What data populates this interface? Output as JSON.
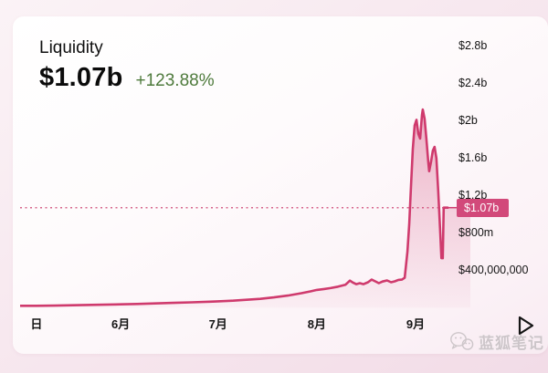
{
  "header": {
    "title": "Liquidity",
    "value": "$1.07b",
    "change": "+123.88%"
  },
  "colors": {
    "line": "#cf3a6d",
    "fill_top": "#cf3a6d",
    "badge_bg": "#d2497a",
    "change_green": "#4e7a3c",
    "dotted_line": "#d04a77"
  },
  "watermark": {
    "text": "蓝狐笔记",
    "icon": "wechat-icon"
  },
  "icons": {
    "play": "triangle-right-outline"
  },
  "chart_data": {
    "type": "area",
    "title": "Liquidity",
    "current_value": "$1.07b",
    "change_pct": "+123.88%",
    "grid": false,
    "legend": false,
    "y_axis": {
      "side": "right",
      "min": 0,
      "max": 2.9,
      "unit": "$ billions",
      "ticks": [
        {
          "label": "$2.8b",
          "value": 2.8
        },
        {
          "label": "$2.4b",
          "value": 2.4
        },
        {
          "label": "$2b",
          "value": 2.0
        },
        {
          "label": "$1.6b",
          "value": 1.6
        },
        {
          "label": "$1.2b",
          "value": 1.2
        },
        {
          "label": "$800m",
          "value": 0.8
        },
        {
          "label": "$400,000,000",
          "value": 0.4
        }
      ]
    },
    "x_axis": {
      "ticks": [
        {
          "label": "日",
          "pos": 0.036
        },
        {
          "label": "6月",
          "pos": 0.222
        },
        {
          "label": "7月",
          "pos": 0.437
        },
        {
          "label": "8月",
          "pos": 0.655
        },
        {
          "label": "9月",
          "pos": 0.873
        }
      ]
    },
    "reference_line": {
      "value": 1.07,
      "label": "$1.07b",
      "style": "dotted"
    },
    "series": {
      "name": "Liquidity",
      "unit": "$b",
      "area_extend": 0.994,
      "points": [
        [
          0.0,
          0.02
        ],
        [
          0.036,
          0.02
        ],
        [
          0.077,
          0.022
        ],
        [
          0.117,
          0.026
        ],
        [
          0.157,
          0.03
        ],
        [
          0.198,
          0.034
        ],
        [
          0.222,
          0.036
        ],
        [
          0.258,
          0.04
        ],
        [
          0.298,
          0.046
        ],
        [
          0.339,
          0.052
        ],
        [
          0.379,
          0.058
        ],
        [
          0.419,
          0.064
        ],
        [
          0.437,
          0.068
        ],
        [
          0.47,
          0.075
        ],
        [
          0.5,
          0.085
        ],
        [
          0.53,
          0.095
        ],
        [
          0.56,
          0.11
        ],
        [
          0.591,
          0.13
        ],
        [
          0.621,
          0.155
        ],
        [
          0.641,
          0.175
        ],
        [
          0.655,
          0.19
        ],
        [
          0.671,
          0.2
        ],
        [
          0.685,
          0.21
        ],
        [
          0.702,
          0.225
        ],
        [
          0.718,
          0.245
        ],
        [
          0.728,
          0.29
        ],
        [
          0.734,
          0.27
        ],
        [
          0.742,
          0.252
        ],
        [
          0.75,
          0.262
        ],
        [
          0.758,
          0.252
        ],
        [
          0.768,
          0.272
        ],
        [
          0.776,
          0.3
        ],
        [
          0.784,
          0.282
        ],
        [
          0.792,
          0.262
        ],
        [
          0.8,
          0.28
        ],
        [
          0.81,
          0.292
        ],
        [
          0.819,
          0.272
        ],
        [
          0.827,
          0.282
        ],
        [
          0.835,
          0.298
        ],
        [
          0.843,
          0.3
        ],
        [
          0.849,
          0.32
        ],
        [
          0.855,
          0.6
        ],
        [
          0.859,
          0.9
        ],
        [
          0.863,
          1.3
        ],
        [
          0.867,
          1.7
        ],
        [
          0.871,
          1.95
        ],
        [
          0.875,
          2.01
        ],
        [
          0.879,
          1.86
        ],
        [
          0.883,
          1.81
        ],
        [
          0.887,
          2.06
        ],
        [
          0.889,
          2.12
        ],
        [
          0.893,
          2.02
        ],
        [
          0.897,
          1.8
        ],
        [
          0.901,
          1.56
        ],
        [
          0.903,
          1.46
        ],
        [
          0.907,
          1.56
        ],
        [
          0.911,
          1.68
        ],
        [
          0.915,
          1.72
        ],
        [
          0.919,
          1.6
        ],
        [
          0.923,
          1.25
        ],
        [
          0.927,
          0.85
        ],
        [
          0.93,
          0.53
        ],
        [
          0.933,
          0.53
        ],
        [
          0.935,
          1.07
        ],
        [
          0.944,
          1.07
        ]
      ]
    }
  }
}
